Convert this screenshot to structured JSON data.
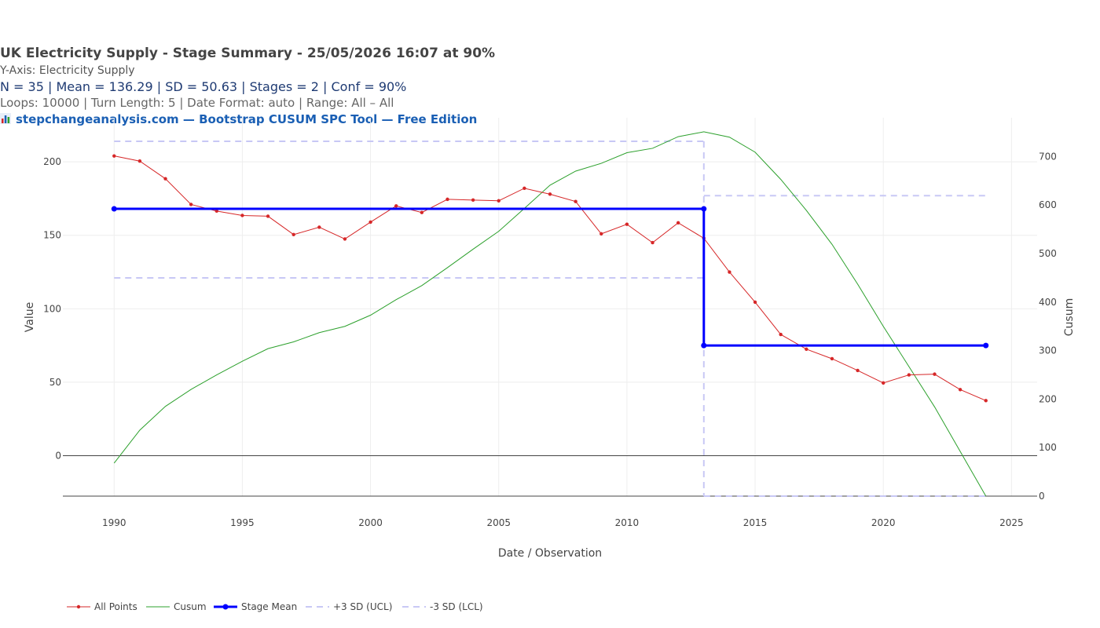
{
  "header": {
    "title": "UK Electricity Supply  - Stage Summary - 25/05/2026 16:07  at 90%",
    "subtitle": "Y-Axis: Electricity Supply",
    "stats": "N = 35  |  Mean = 136.29  |  SD = 50.63  |  Stages = 2  |  Conf = 90%",
    "params": "Loops: 10000  |  Turn Length: 5  |  Date Format: auto  |  Range: All – All",
    "brand": "stepchangeanalysis.com — Bootstrap CUSUM SPC Tool — Free Edition",
    "brand_icon": "bar-chart-icon"
  },
  "chart_data": {
    "type": "line",
    "xlabel": "Date / Observation",
    "ylabel": "Value",
    "y2label": "Cusum",
    "xlim": [
      1988,
      2026
    ],
    "ylim": [
      -27.5,
      230
    ],
    "y2lim": [
      0,
      780
    ],
    "x_ticks": [
      1990,
      1995,
      2000,
      2005,
      2010,
      2015,
      2020,
      2025
    ],
    "y_ticks": [
      0,
      50,
      100,
      150,
      200
    ],
    "y2_ticks": [
      0,
      100,
      200,
      300,
      400,
      500,
      600,
      700
    ],
    "grid": true,
    "legend_position": "bottom-left",
    "colors": {
      "points": "#d62728",
      "cusum": "#2ca02c",
      "stage_mean": "#0000ff",
      "limits": "#c8c8f5"
    },
    "x": [
      1990,
      1991,
      1992,
      1993,
      1994,
      1995,
      1996,
      1997,
      1998,
      1999,
      2000,
      2001,
      2002,
      2003,
      2004,
      2005,
      2006,
      2007,
      2008,
      2009,
      2010,
      2011,
      2012,
      2013,
      2014,
      2015,
      2016,
      2017,
      2018,
      2019,
      2020,
      2021,
      2022,
      2023,
      2024
    ],
    "series": [
      {
        "name": "All Points",
        "values": [
          204,
          200.5,
          188.5,
          171,
          166.5,
          163.5,
          163,
          150.5,
          155.5,
          147.5,
          159,
          170,
          165.5,
          174.5,
          174,
          173.5,
          182,
          178,
          173,
          151,
          157.5,
          145,
          158.5,
          148,
          125,
          104.5,
          82.5,
          72.5,
          66,
          58,
          49.5,
          55,
          55.5,
          45,
          37.5
        ]
      },
      {
        "name": "Cusum",
        "axis": "right",
        "values": [
          68,
          136,
          185,
          220,
          250,
          278,
          304,
          318,
          337,
          350,
          373,
          405,
          434,
          471,
          509,
          546,
          593,
          641,
          670,
          686,
          708,
          717,
          741,
          751,
          740,
          709,
          653,
          589,
          519,
          437,
          350,
          267,
          184,
          92,
          0
        ]
      }
    ],
    "stages": [
      {
        "start": 1990,
        "end": 2013,
        "mean": 168,
        "ucl": 214,
        "lcl": 121
      },
      {
        "start": 2013,
        "end": 2024,
        "mean": 75,
        "ucl": 177,
        "lcl": -27.5
      }
    ],
    "legend": [
      "All Points",
      "Cusum",
      "Stage Mean",
      "+3 SD (UCL)",
      "-3 SD (LCL)"
    ]
  }
}
